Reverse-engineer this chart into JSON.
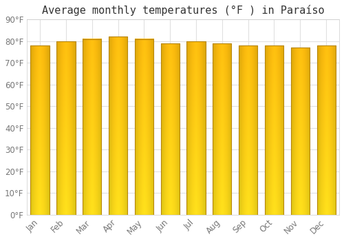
{
  "title": "Average monthly temperatures (°F ) in Paraíso",
  "months": [
    "Jan",
    "Feb",
    "Mar",
    "Apr",
    "May",
    "Jun",
    "Jul",
    "Aug",
    "Sep",
    "Oct",
    "Nov",
    "Dec"
  ],
  "values": [
    78,
    80,
    81,
    82,
    81,
    79,
    80,
    79,
    78,
    78,
    77,
    78
  ],
  "ylim": [
    0,
    90
  ],
  "yticks": [
    0,
    10,
    20,
    30,
    40,
    50,
    60,
    70,
    80,
    90
  ],
  "ytick_labels": [
    "0°F",
    "10°F",
    "20°F",
    "30°F",
    "40°F",
    "50°F",
    "60°F",
    "70°F",
    "80°F",
    "90°F"
  ],
  "background_color": "#ffffff",
  "grid_color": "#e0e0e0",
  "title_fontsize": 11,
  "tick_fontsize": 8.5,
  "bar_edge_color": "#b8860b",
  "bar_color_left": "#FFA500",
  "bar_color_center": "#FFD966",
  "bar_color_right": "#FFA500",
  "bar_color_bottom": "#FFB300",
  "bar_color_top": "#FFD966"
}
